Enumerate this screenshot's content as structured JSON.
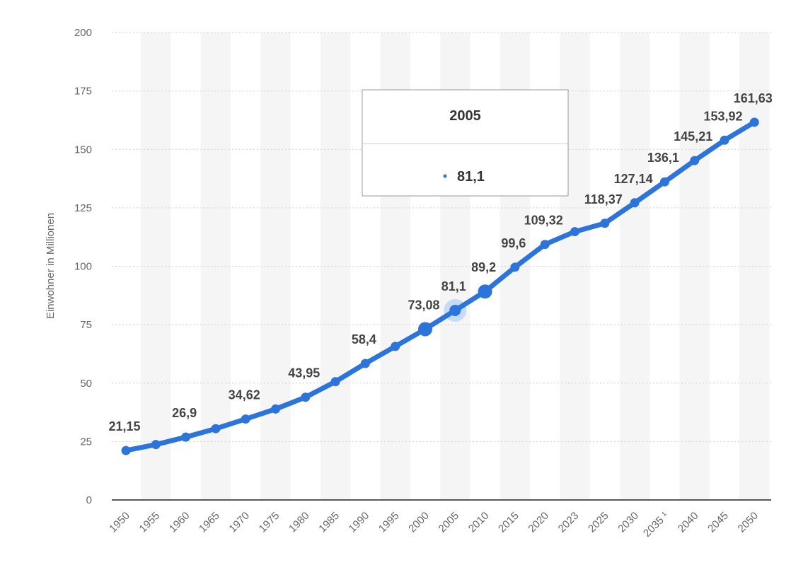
{
  "chart_data": {
    "type": "line",
    "categories": [
      "1950",
      "1955",
      "1960",
      "1965",
      "1970",
      "1975",
      "1980",
      "1985",
      "1990",
      "1995",
      "2000",
      "2005",
      "2010",
      "2015",
      "2020",
      "2023",
      "2025",
      "2030",
      "2035 ¹",
      "2040",
      "2045",
      "2050"
    ],
    "values": [
      21.15,
      23.7,
      26.9,
      30.5,
      34.62,
      38.9,
      43.95,
      50.6,
      58.4,
      65.7,
      73.08,
      81.1,
      89.2,
      99.6,
      109.32,
      114.8,
      118.37,
      127.14,
      136.1,
      145.21,
      153.92,
      161.63
    ],
    "label_texts": [
      "21,15",
      "",
      "26,9",
      "",
      "34,62",
      "",
      "43,95",
      "",
      "58,4",
      "",
      "73,08",
      "81,1",
      "89,2",
      "99,6",
      "109,32",
      "",
      "118,37",
      "127,14",
      "136,1",
      "145,21",
      "153,92",
      "161,63"
    ],
    "y_ticks": [
      0,
      25,
      50,
      75,
      100,
      125,
      150,
      175,
      200
    ],
    "y_tick_labels": [
      "0",
      "25",
      "50",
      "75",
      "100",
      "125",
      "150",
      "175",
      "200"
    ],
    "ylim": [
      0,
      200
    ],
    "ylabel": "Einwohner in Millionen",
    "xlabel": "",
    "title": "",
    "grid": true,
    "highlighted_index": 11,
    "emphasized_indices": [
      10,
      12
    ],
    "tooltip": {
      "title": "2005",
      "value": "81,1",
      "bullet": "•"
    },
    "colors": {
      "line": "#2d74da",
      "highlight": "#9fc4f5",
      "grid": "#cfcfcf",
      "band": "#f5f5f5",
      "axis": "#222222"
    }
  }
}
